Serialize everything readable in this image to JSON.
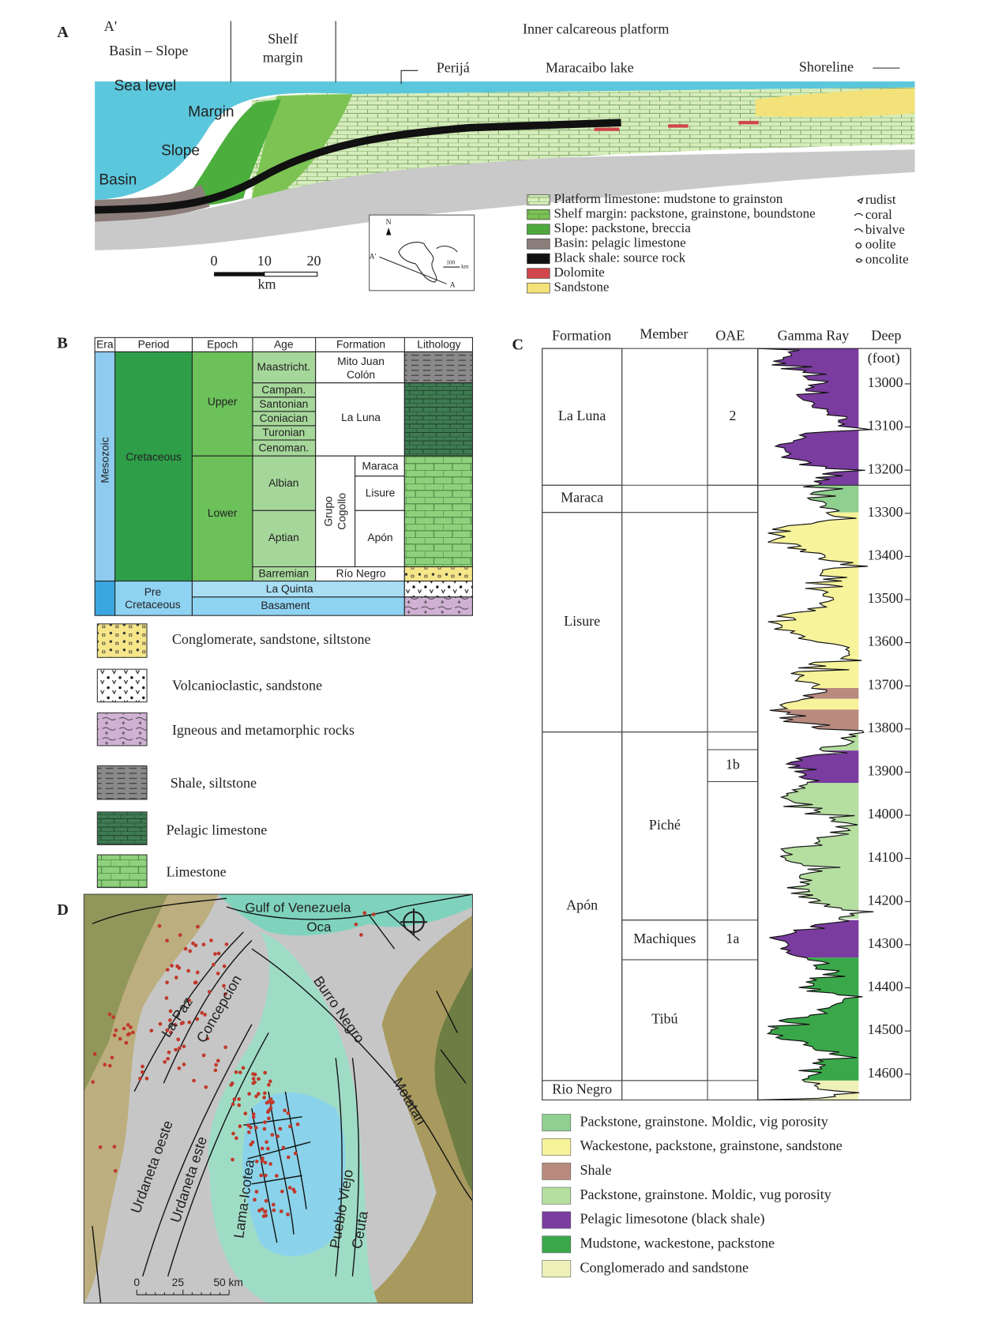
{
  "figure_labels": {
    "a": "A",
    "b": "B",
    "c": "C",
    "d": "D"
  },
  "panel_a": {
    "a_prime": "A'",
    "basin_slope": "Basin – Slope",
    "shelf_margin": [
      "Shelf",
      "margin"
    ],
    "inner_platform": "Inner calcareous platform",
    "perija": "Perijá",
    "maracaibo_lake": "Maracaibo lake",
    "shoreline": "Shoreline",
    "sea_level": "Sea level",
    "margin": "Margin",
    "slope": "Slope",
    "basin": "Basin",
    "legend": [
      {
        "label": "Platform limestone: mudstone to grainston",
        "color": "#d6edbb"
      },
      {
        "label": "Shelf margin: packstone, grainstone, boundstone",
        "color": "#7cc354"
      },
      {
        "label": "Slope: packstone, breccia",
        "color": "#4cae3c"
      },
      {
        "label": "Basin: pelagic limestone",
        "color": "#8b7d7a"
      },
      {
        "label": "Black shale: source rock",
        "color": "#111111"
      },
      {
        "label": "Dolomite",
        "color": "#d0464a"
      },
      {
        "label": "Sandstone",
        "color": "#f3e27a"
      }
    ],
    "fossils": [
      "rudist",
      "coral",
      "bivalve",
      "oolite",
      "oncolite"
    ],
    "scale": {
      "labels": [
        "0",
        "10",
        "20"
      ],
      "unit": "km"
    },
    "inset": {
      "north": "N",
      "a_prime": "A'",
      "a": "A",
      "scale": [
        "100",
        "km"
      ]
    }
  },
  "panel_b": {
    "headers": [
      "Era",
      "Period",
      "Epoch",
      "Age",
      "Formation",
      "Lithology"
    ],
    "era": "Mesozoic",
    "period": "Cretaceous",
    "pre_period": [
      "Pre",
      "Cretaceous"
    ],
    "epochs": [
      "Upper",
      "Lower"
    ],
    "ages": [
      "Maastricht.",
      "Campan.",
      "Santonian",
      "Coniacian",
      "Turonian",
      "Cenoman.",
      "Albian",
      "Aptian",
      "Barremian"
    ],
    "formations": {
      "mito_juan_colon": [
        "Mito Juan",
        "Colón"
      ],
      "la_luna": "La Luna",
      "grupo_cogollo": [
        "Grupo",
        "Cogollo"
      ],
      "members": [
        "Maraca",
        "Lisure",
        "Apón"
      ],
      "rio_negro": "Río Negro",
      "la_quinta": "La Quinta",
      "basament": "Basament"
    },
    "legend": [
      "Conglomerate, sandstone, siltstone",
      "Volcanioclastic, sandstone",
      "Igneous and metamorphic rocks",
      "Shale, siltstone",
      "Pelagic limestone",
      "Limestone"
    ]
  },
  "panel_c": {
    "headers": {
      "formation": "Formation",
      "member": "Member",
      "oae": "OAE",
      "gamma_ray": "Gamma Ray",
      "deep": "Deep"
    },
    "depth_unit": "(foot)",
    "depth_range": [
      12918,
      14660
    ],
    "depth_ticks": [
      13000,
      13100,
      13200,
      13300,
      13400,
      13500,
      13600,
      13700,
      13800,
      13900,
      14000,
      14100,
      14200,
      14300,
      14400,
      14500,
      14600
    ],
    "formations": [
      {
        "name": "La Luna",
        "top": 12918,
        "base": 13235
      },
      {
        "name": "Maraca",
        "top": 13235,
        "base": 13298
      },
      {
        "name": "Lisure",
        "top": 13298,
        "base": 13807
      },
      {
        "name": "Apón",
        "top": 13807,
        "base": 14615
      },
      {
        "name": "Rio Negro",
        "top": 14615,
        "base": 14660
      }
    ],
    "members": [
      {
        "name": "Piché",
        "top": 13807,
        "base": 14243
      },
      {
        "name": "Machiques",
        "top": 14243,
        "base": 14335
      },
      {
        "name": "Tibú",
        "top": 14335,
        "base": 14615
      }
    ],
    "oae": [
      {
        "label": "2",
        "top": 12918,
        "base": 13235
      },
      {
        "label": "1b",
        "top": 13848,
        "base": 13922
      },
      {
        "label": "1a",
        "top": 14243,
        "base": 14335
      }
    ],
    "legend": [
      {
        "label": "Packstone, grainstone. Moldic, vig porosity",
        "color": "#8fcf8f",
        "intervals": [
          [
            13235,
            13298
          ]
        ]
      },
      {
        "label": "Wackestone, packstone, grainstone, sandstone",
        "color": "#f7f39b",
        "intervals": [
          [
            13298,
            13705
          ],
          [
            13730,
            13755
          ]
        ]
      },
      {
        "label": "Shale",
        "color": "#b88a7e",
        "intervals": [
          [
            13705,
            13730
          ],
          [
            13755,
            13807
          ]
        ]
      },
      {
        "label": "Packstone, grainstone. Moldic, vug porosity",
        "color": "#b5dea1",
        "intervals": [
          [
            13807,
            13850
          ],
          [
            13925,
            14240
          ]
        ]
      },
      {
        "label": "Pelagic limesotone (black shale)",
        "color": "#7a3c9f",
        "intervals": [
          [
            12918,
            13235
          ],
          [
            13850,
            13925
          ],
          [
            14243,
            14330
          ]
        ]
      },
      {
        "label": "Mudstone, wackestone, packstone",
        "color": "#3aa84a",
        "intervals": [
          [
            14330,
            14615
          ]
        ]
      },
      {
        "label": "Conglomerado and sandstone",
        "color": "#eef0b8",
        "intervals": [
          [
            14615,
            14660
          ]
        ]
      }
    ]
  },
  "panel_d": {
    "labels": {
      "gulf": "Gulf of Venezuela",
      "oca": "Oca",
      "la_paz": "La Paz",
      "concepcion": "Concepcion",
      "burro_negro": "Burro Negro",
      "motatan": "Motatan",
      "urdaneta_oeste": "Urdaneta oeste",
      "urdaneta_este": "Urdaneta este",
      "lama_icotea": "Lama-Icotea",
      "pueblo_viejo": "Pueblo Viejo",
      "ceuta": "Ceuta"
    },
    "scale": [
      "0",
      "25",
      "50 km"
    ]
  }
}
